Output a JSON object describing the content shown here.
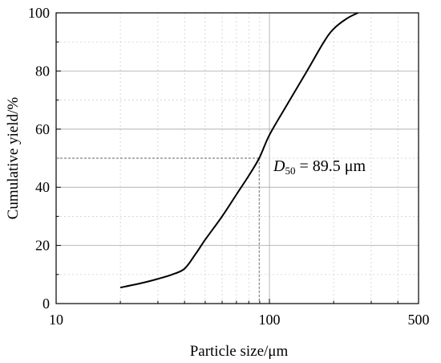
{
  "chart_data": {
    "type": "line",
    "xscale": "log",
    "xlim": [
      10,
      500
    ],
    "ylim": [
      0,
      100
    ],
    "xticks": [
      10,
      100,
      500
    ],
    "xtick_labels": [
      "10",
      "100",
      "500"
    ],
    "yticks": [
      0,
      20,
      40,
      60,
      80,
      100
    ],
    "ytick_labels": [
      "0",
      "20",
      "40",
      "60",
      "80",
      "100"
    ],
    "xlabel": "Particle size/μm",
    "ylabel": "Cumulative yield/%",
    "grid": true,
    "series": [
      {
        "color": "#000000",
        "x": [
          20,
          25,
          30,
          35,
          40,
          45,
          50,
          60,
          70,
          80,
          89.5,
          100,
          120,
          150,
          180,
          200,
          230,
          260
        ],
        "y": [
          5.5,
          7.0,
          8.5,
          10.0,
          12.0,
          17.0,
          22.0,
          30.0,
          37.5,
          44.0,
          50.0,
          58.0,
          68.0,
          80.0,
          90.0,
          94.5,
          98.0,
          100.0
        ]
      }
    ],
    "reference": {
      "x": 89.5,
      "y": 50
    },
    "annotation": {
      "symbol": "D",
      "subscript": "50",
      "rest": " = 89.5 μm"
    }
  }
}
